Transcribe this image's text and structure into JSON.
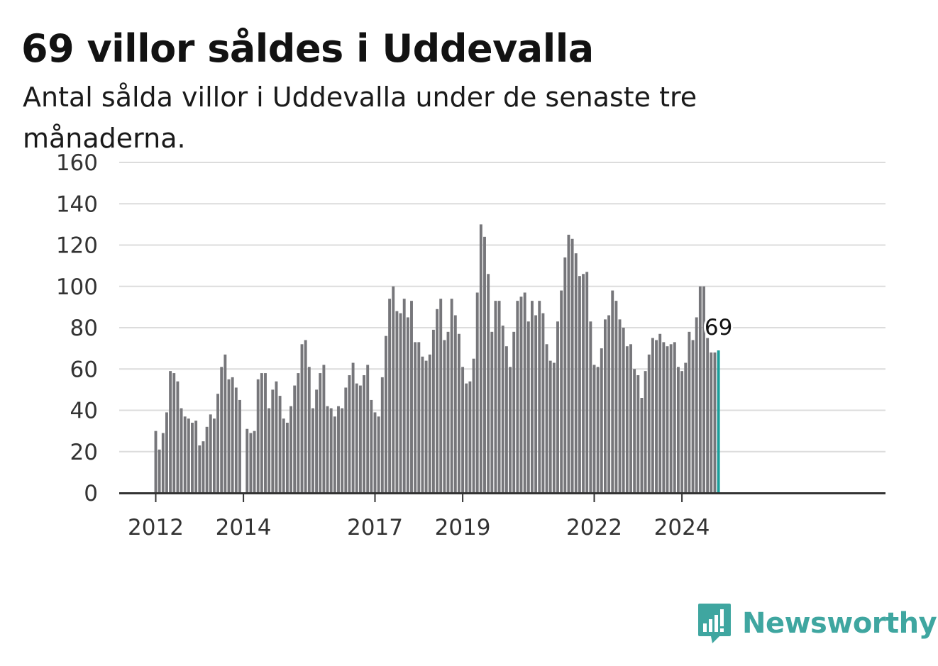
{
  "title": "69 villor såldes i Uddevalla",
  "subtitle": "Antal sålda villor i Uddevalla under de senaste tre månaderna.",
  "brand": {
    "name": "Newsworthy",
    "icon": "bar-chart-speech-bubble-icon",
    "color": "#3fa6a0"
  },
  "chart_data": {
    "type": "bar",
    "x_ticks": [
      "2012",
      "2014",
      "2017",
      "2019",
      "2022",
      "2024"
    ],
    "y_ticks": [
      "0",
      "20",
      "40",
      "60",
      "80",
      "100",
      "120",
      "140",
      "160"
    ],
    "ylim": [
      0,
      160
    ],
    "grid": true,
    "bar_color": "#76767a",
    "highlight_color": "#1a9e9a",
    "last_label": "69",
    "start": "2012-01",
    "end": "2024-10",
    "values": [
      30,
      21,
      29,
      39,
      59,
      58,
      54,
      41,
      37,
      36,
      34,
      35,
      23,
      25,
      32,
      38,
      36,
      48,
      61,
      67,
      55,
      56,
      51,
      45,
      null,
      31,
      29,
      30,
      55,
      58,
      58,
      41,
      50,
      54,
      47,
      36,
      34,
      42,
      52,
      58,
      72,
      74,
      61,
      41,
      50,
      58,
      62,
      42,
      41,
      37,
      42,
      41,
      51,
      57,
      63,
      53,
      52,
      57,
      62,
      45,
      39,
      37,
      56,
      76,
      94,
      100,
      88,
      87,
      94,
      85,
      93,
      73,
      73,
      66,
      64,
      67,
      79,
      89,
      94,
      74,
      78,
      94,
      86,
      77,
      61,
      53,
      54,
      65,
      97,
      130,
      124,
      106,
      78,
      93,
      93,
      81,
      71,
      61,
      78,
      93,
      95,
      97,
      83,
      93,
      86,
      93,
      87,
      72,
      64,
      63,
      83,
      98,
      114,
      125,
      123,
      116,
      105,
      106,
      107,
      83,
      62,
      61,
      70,
      84,
      86,
      98,
      93,
      84,
      80,
      71,
      72,
      60,
      57,
      46,
      59,
      67,
      75,
      74,
      77,
      73,
      71,
      72,
      73,
      61,
      59,
      63,
      78,
      74,
      85,
      100,
      100,
      75,
      68,
      68,
      69
    ]
  }
}
